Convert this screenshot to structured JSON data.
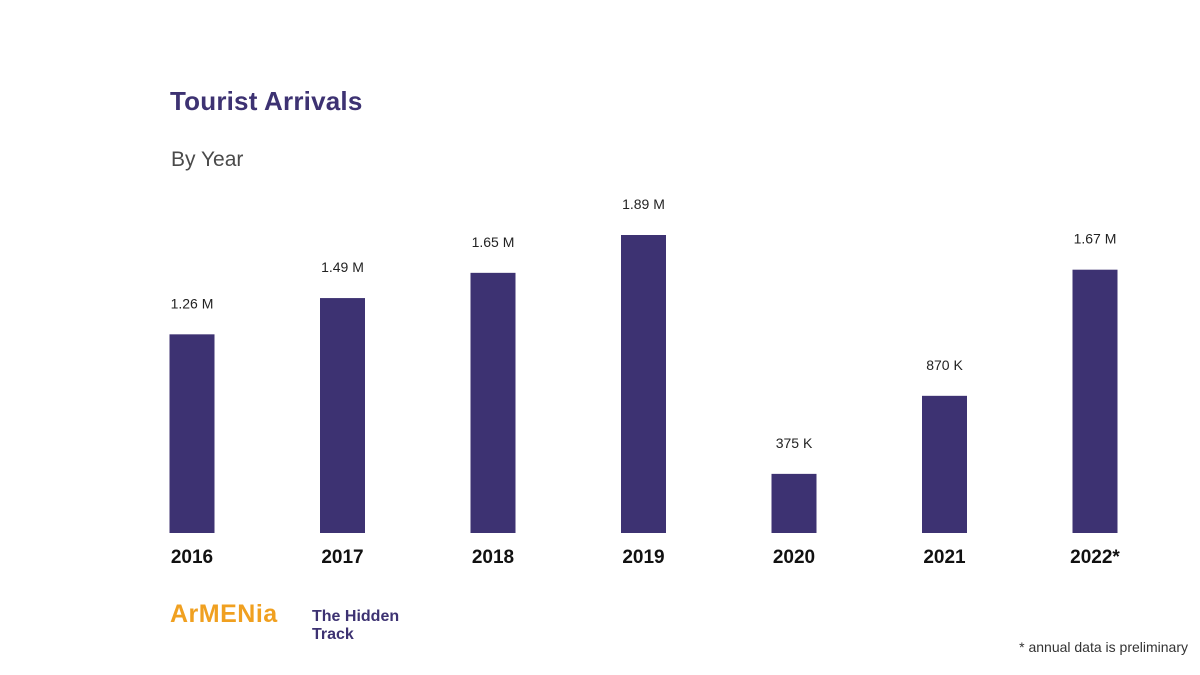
{
  "header": {
    "title": "Tourist Arrivals",
    "subtitle": "By Year"
  },
  "brand": {
    "logo_text": "ArMENia",
    "tagline": "The Hidden Track"
  },
  "footnote": "* annual data is preliminary",
  "colors": {
    "bar": "#3d3272",
    "logo": "#f0a020",
    "label": "#222222"
  },
  "chart_data": {
    "type": "bar",
    "title": "Tourist Arrivals",
    "subtitle": "By Year",
    "categories": [
      "2016",
      "2017",
      "2018",
      "2019",
      "2020",
      "2021",
      "2022*"
    ],
    "values": [
      1260000,
      1490000,
      1650000,
      1890000,
      375000,
      870000,
      1670000
    ],
    "data_labels": [
      "1.26 M",
      "1.49 M",
      "1.65 M",
      "1.89 M",
      "375 K",
      "870 K",
      "1.67 M"
    ],
    "ylim": [
      0,
      1890000
    ],
    "grid": false,
    "legend": "none"
  }
}
